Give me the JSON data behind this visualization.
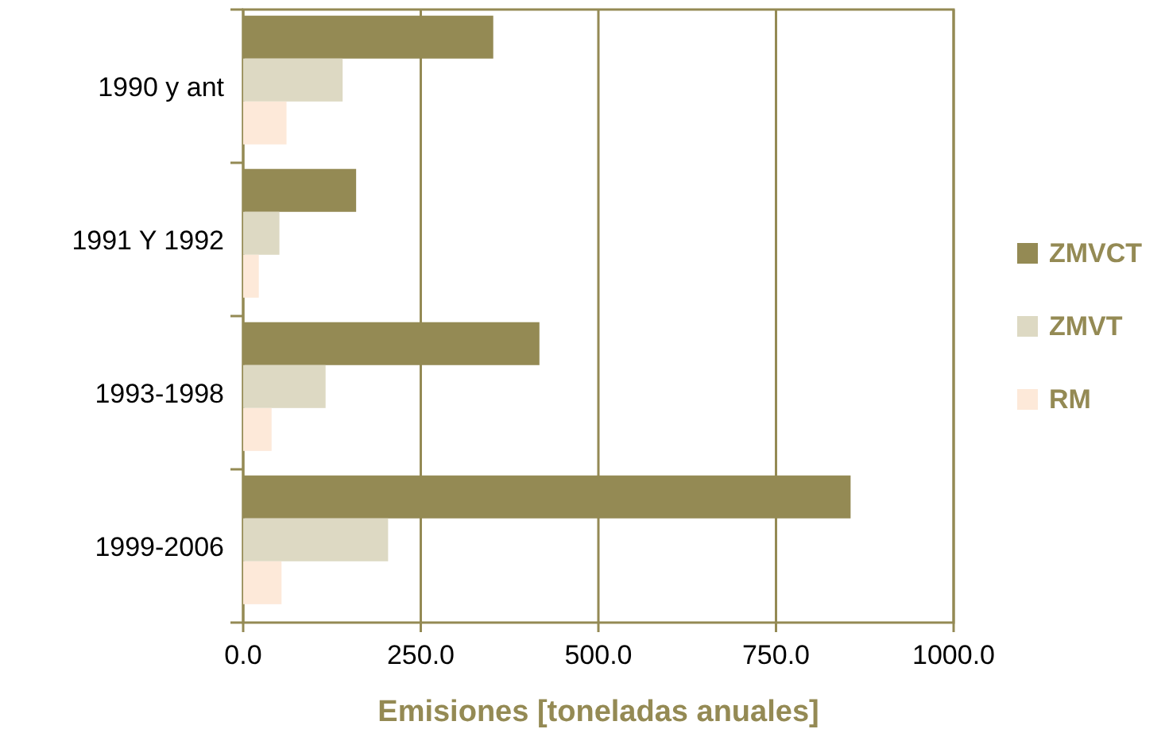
{
  "chart_data": {
    "type": "bar",
    "orientation": "horizontal",
    "xlabel": "Emisiones [toneladas anuales]",
    "categories": [
      "1990 y ant",
      "1991 Y 1992",
      "1993-1998",
      "1999-2006"
    ],
    "series": [
      {
        "name": "ZMVCT",
        "color": "#948a54",
        "values": [
          352,
          159,
          417,
          855
        ]
      },
      {
        "name": "ZMVT",
        "color": "#ddd9c3",
        "values": [
          140,
          51,
          116,
          204
        ]
      },
      {
        "name": "RM",
        "color": "#fde9d9",
        "values": [
          61,
          22,
          40,
          54
        ]
      }
    ],
    "xlim": [
      0,
      1000
    ],
    "xticks": [
      {
        "value": 0,
        "label": "0.0"
      },
      {
        "value": 250,
        "label": "250.0"
      },
      {
        "value": 500,
        "label": "500.0"
      },
      {
        "value": 750,
        "label": "750.0"
      },
      {
        "value": 1000,
        "label": "1000.0"
      }
    ],
    "grid": "x",
    "legend": "right"
  }
}
